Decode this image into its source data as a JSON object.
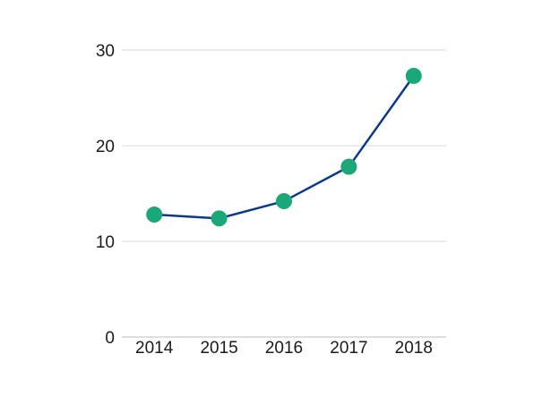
{
  "chart_data": {
    "type": "line",
    "title": "",
    "xlabel": "",
    "ylabel": "",
    "categories": [
      "2014",
      "2015",
      "2016",
      "2017",
      "2018"
    ],
    "series": [
      {
        "values": [
          12.8,
          12.4,
          14.2,
          17.8,
          27.3
        ]
      }
    ],
    "ylim": [
      0,
      30
    ],
    "yticks": [
      0,
      10,
      20,
      30
    ],
    "ytick_labels": [
      "0",
      "10",
      "20",
      "30"
    ],
    "grid": true,
    "legend": "none",
    "colors": {
      "line": "#0b3a8c",
      "marker": "#1aa87a",
      "grid": "#d9d9d9",
      "axis": "#bfbfbf"
    }
  }
}
